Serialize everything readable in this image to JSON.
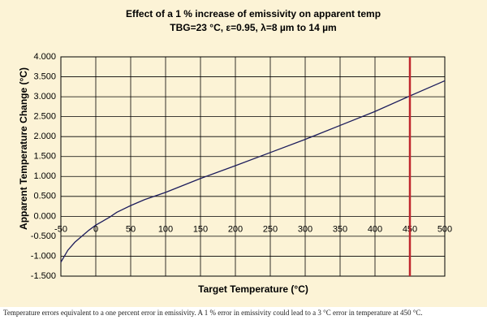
{
  "chart_data": {
    "type": "line",
    "title": "Effect of a 1 % increase of emissivity on apparent temp",
    "subtitle": "TBG=23 °C, ε=0.95, λ=8 µm to 14 µm",
    "x_label": "Target Temperature (°C)",
    "y_label": "Apparent Temperature Change (°C)",
    "x": [
      -50,
      -40,
      -30,
      -20,
      -10,
      0,
      20,
      30,
      50,
      70,
      100,
      150,
      200,
      250,
      300,
      350,
      400,
      450,
      500
    ],
    "values": [
      -1.15,
      -0.85,
      -0.65,
      -0.5,
      -0.35,
      -0.22,
      -0.02,
      0.1,
      0.27,
      0.42,
      0.6,
      0.95,
      1.27,
      1.6,
      1.93,
      2.28,
      2.63,
      3.02,
      3.4
    ],
    "color": "#1c1c5c",
    "marker_x": 450,
    "marker_color": "#c0262d",
    "xlim": [
      -50,
      500
    ],
    "xticks": [
      -50,
      0,
      50,
      100,
      150,
      200,
      250,
      300,
      350,
      400,
      450,
      500
    ],
    "ylim": [
      -1.5,
      4
    ],
    "yticks": [
      {
        "value": -1.5,
        "label": "-1.500"
      },
      {
        "value": -1,
        "label": "-1.000"
      },
      {
        "value": -0.5,
        "label": "-0.500"
      },
      {
        "value": 0,
        "label": "0.000"
      },
      {
        "value": 0.5,
        "label": "0.500"
      },
      {
        "value": 1,
        "label": "1.000"
      },
      {
        "value": 1.5,
        "label": "1.500"
      },
      {
        "value": 2,
        "label": "2.000"
      },
      {
        "value": 2.5,
        "label": "2.500"
      },
      {
        "value": 3,
        "label": "3.000"
      },
      {
        "value": 3.5,
        "label": "3.500"
      },
      {
        "value": 4,
        "label": "4.000"
      }
    ],
    "grid": true,
    "caption": "Temperature errors equivalent to a one percent error in emissivity. A 1 % error in emissivity could lead to a 3 °C error in temperature at 450 °C."
  }
}
